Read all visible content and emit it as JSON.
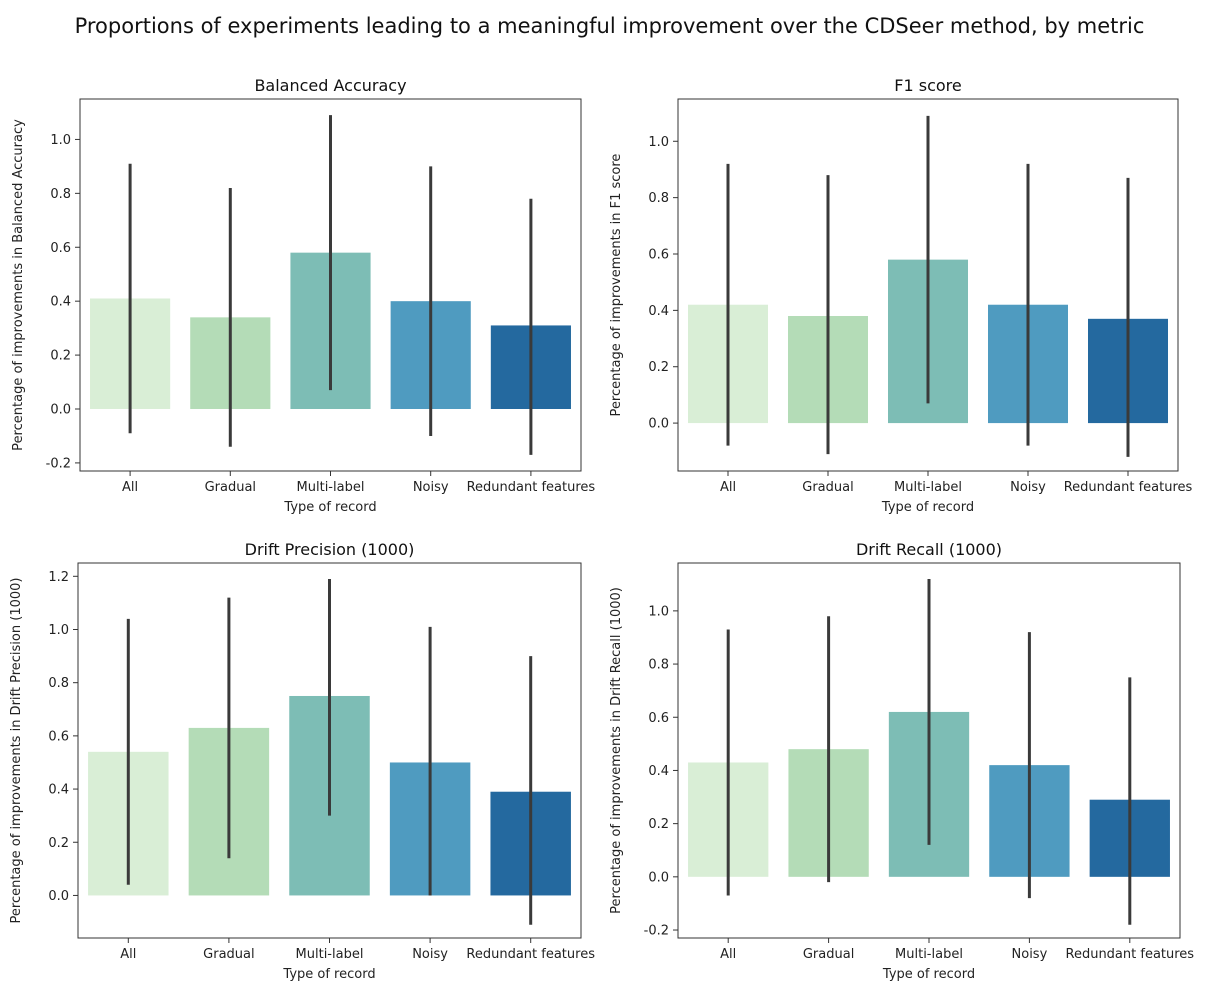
{
  "figure": {
    "title": "Proportions of experiments leading to a meaningful improvement over the CDSeer method, by metric"
  },
  "palette": [
    "#d9eed6",
    "#b4dcb7",
    "#7dbdb5",
    "#4f9bc0",
    "#24699f"
  ],
  "chart_data": [
    {
      "type": "bar",
      "title": "Balanced Accuracy",
      "xlabel": "Type of record",
      "ylabel": "Percentage of improvements in Balanced Accuracy",
      "categories": [
        "All",
        "Gradual",
        "Multi-label",
        "Noisy",
        "Redundant features"
      ],
      "values": [
        0.41,
        0.34,
        0.58,
        0.4,
        0.31
      ],
      "error_low": [
        -0.09,
        -0.14,
        0.07,
        -0.1,
        -0.17
      ],
      "error_high": [
        0.91,
        0.82,
        1.09,
        0.9,
        0.78
      ],
      "ylim": [
        -0.23,
        1.15
      ],
      "yticks": [
        -0.2,
        0.0,
        0.2,
        0.4,
        0.6,
        0.8,
        1.0
      ]
    },
    {
      "type": "bar",
      "title": "F1 score",
      "xlabel": "Type of record",
      "ylabel": "Percentage of improvements in F1 score",
      "categories": [
        "All",
        "Gradual",
        "Multi-label",
        "Noisy",
        "Redundant features"
      ],
      "values": [
        0.42,
        0.38,
        0.58,
        0.42,
        0.37
      ],
      "error_low": [
        -0.08,
        -0.11,
        0.07,
        -0.08,
        -0.12
      ],
      "error_high": [
        0.92,
        0.88,
        1.09,
        0.92,
        0.87
      ],
      "ylim": [
        -0.17,
        1.15
      ],
      "yticks": [
        0.0,
        0.2,
        0.4,
        0.6,
        0.8,
        1.0
      ]
    },
    {
      "type": "bar",
      "title": "Drift Precision (1000)",
      "xlabel": "Type of record",
      "ylabel": "Percentage of improvements in Drift Precision (1000)",
      "categories": [
        "All",
        "Gradual",
        "Multi-label",
        "Noisy",
        "Redundant features"
      ],
      "values": [
        0.54,
        0.63,
        0.75,
        0.5,
        0.39
      ],
      "error_low": [
        0.04,
        0.14,
        0.3,
        0.0,
        -0.11
      ],
      "error_high": [
        1.04,
        1.12,
        1.19,
        1.01,
        0.9
      ],
      "ylim": [
        -0.16,
        1.25
      ],
      "yticks": [
        0.0,
        0.2,
        0.4,
        0.6,
        0.8,
        1.0,
        1.2
      ]
    },
    {
      "type": "bar",
      "title": "Drift Recall (1000)",
      "xlabel": "Type of record",
      "ylabel": "Percentage of improvements in Drift Recall (1000)",
      "categories": [
        "All",
        "Gradual",
        "Multi-label",
        "Noisy",
        "Redundant features"
      ],
      "values": [
        0.43,
        0.48,
        0.62,
        0.42,
        0.29
      ],
      "error_low": [
        -0.07,
        -0.02,
        0.12,
        -0.08,
        -0.18
      ],
      "error_high": [
        0.93,
        0.98,
        1.12,
        0.92,
        0.75
      ],
      "ylim": [
        -0.23,
        1.18
      ],
      "yticks": [
        -0.2,
        0.0,
        0.2,
        0.4,
        0.6,
        0.8,
        1.0
      ]
    }
  ]
}
